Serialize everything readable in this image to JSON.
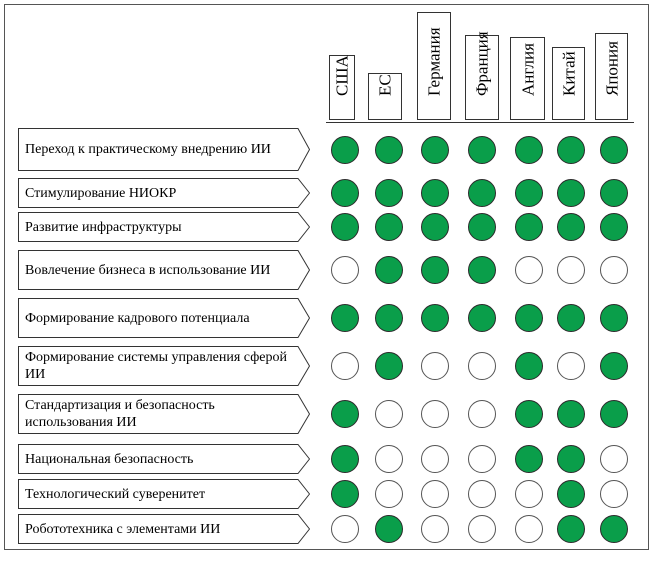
{
  "columns": [
    "США",
    "ЕС",
    "Германия",
    "Франция",
    "Англия",
    "Китай",
    "Япония"
  ],
  "rows": [
    {
      "label": "Переход к практическому внедрению ИИ",
      "values": [
        1,
        1,
        1,
        1,
        1,
        1,
        1
      ]
    },
    {
      "label": "Стимулирование НИОКР",
      "values": [
        1,
        1,
        1,
        1,
        1,
        1,
        1
      ]
    },
    {
      "label": "Развитие инфраструктуры",
      "values": [
        1,
        1,
        1,
        1,
        1,
        1,
        1
      ]
    },
    {
      "label": "Вовлечение бизнеса в использование ИИ",
      "values": [
        0,
        1,
        1,
        1,
        0,
        0,
        0
      ]
    },
    {
      "label": "Формирование кадрового потенциала",
      "values": [
        1,
        1,
        1,
        1,
        1,
        1,
        1
      ]
    },
    {
      "label": "Формирование системы управления сферой ИИ",
      "values": [
        0,
        1,
        0,
        0,
        1,
        0,
        1
      ]
    },
    {
      "label": "Стандартизация и безопасность использования ИИ",
      "values": [
        1,
        0,
        0,
        0,
        1,
        1,
        1
      ]
    },
    {
      "label": "Национальная безопасность",
      "values": [
        1,
        0,
        0,
        0,
        1,
        1,
        0
      ]
    },
    {
      "label": "Технологический суверенитет",
      "values": [
        1,
        0,
        0,
        0,
        0,
        1,
        0
      ]
    },
    {
      "label": "Робототехника с элементами ИИ",
      "values": [
        0,
        1,
        0,
        0,
        0,
        1,
        1
      ]
    }
  ],
  "colors": {
    "filled": "#0a9e4a",
    "empty": "#ffffff"
  }
}
